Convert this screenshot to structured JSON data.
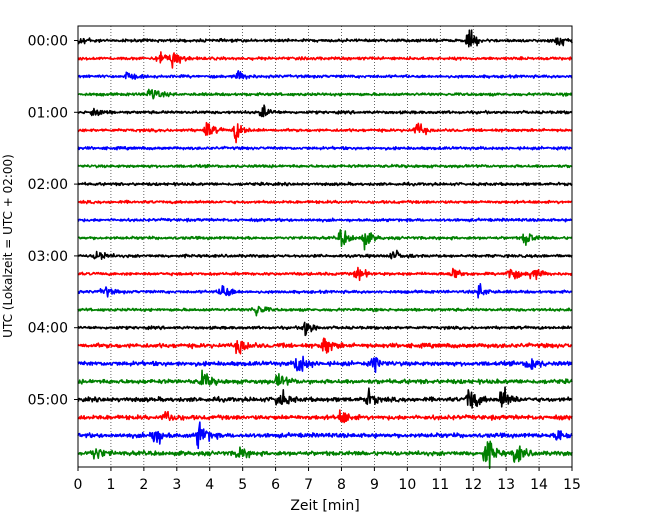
{
  "chart_data": {
    "type": "line",
    "chart_kind": "helicorder (seismogram drum plot)",
    "xlabel": "Zeit  [min]",
    "ylabel": "UTC (Lokalzeit = UTC + 02:00)",
    "xlim": [
      0,
      15
    ],
    "x_ticks": [
      "0",
      "1",
      "2",
      "3",
      "4",
      "5",
      "6",
      "7",
      "8",
      "9",
      "10",
      "11",
      "12",
      "13",
      "14",
      "15"
    ],
    "y_tick_labels": [
      "00:00",
      "01:00",
      "02:00",
      "03:00",
      "04:00",
      "05:00"
    ],
    "grid": "vertical dotted lines at each minute",
    "row_interval_min": 15,
    "trace_colors": [
      "#000000",
      "#ff0000",
      "#0000ff",
      "#008000"
    ],
    "rows": [
      {
        "start": "00:00",
        "color": "#000000",
        "events": [
          [
            0.1,
            0.6
          ],
          [
            11.9,
            1.0
          ],
          [
            14.6,
            0.8
          ]
        ]
      },
      {
        "start": "00:15",
        "color": "#ff0000",
        "events": [
          [
            2.5,
            0.8
          ],
          [
            2.9,
            1.0
          ]
        ]
      },
      {
        "start": "00:30",
        "color": "#0000ff",
        "events": [
          [
            1.5,
            0.4
          ],
          [
            4.9,
            0.5
          ]
        ]
      },
      {
        "start": "00:45",
        "color": "#008000",
        "events": [
          [
            2.2,
            1.0
          ]
        ]
      },
      {
        "start": "01:00",
        "color": "#000000",
        "events": [
          [
            0.5,
            0.6
          ],
          [
            5.6,
            0.7
          ]
        ]
      },
      {
        "start": "01:15",
        "color": "#ff0000",
        "events": [
          [
            3.9,
            1.0
          ],
          [
            4.8,
            1.1
          ],
          [
            10.3,
            0.8
          ]
        ]
      },
      {
        "start": "01:30",
        "color": "#0000ff",
        "events": []
      },
      {
        "start": "01:45",
        "color": "#008000",
        "events": []
      },
      {
        "start": "02:00",
        "color": "#000000",
        "events": []
      },
      {
        "start": "02:15",
        "color": "#ff0000",
        "events": []
      },
      {
        "start": "02:30",
        "color": "#0000ff",
        "events": []
      },
      {
        "start": "02:45",
        "color": "#008000",
        "events": [
          [
            8.0,
            1.0
          ],
          [
            8.7,
            1.0
          ],
          [
            13.6,
            0.8
          ]
        ]
      },
      {
        "start": "03:00",
        "color": "#000000",
        "events": [
          [
            0.6,
            0.8
          ],
          [
            9.6,
            0.6
          ]
        ]
      },
      {
        "start": "03:15",
        "color": "#ff0000",
        "events": [
          [
            8.5,
            0.7
          ],
          [
            11.4,
            0.7
          ],
          [
            13.1,
            1.0
          ],
          [
            13.8,
            0.8
          ]
        ]
      },
      {
        "start": "03:30",
        "color": "#0000ff",
        "events": [
          [
            0.8,
            0.6
          ],
          [
            4.4,
            1.0
          ],
          [
            12.2,
            0.8
          ]
        ]
      },
      {
        "start": "03:45",
        "color": "#008000",
        "events": [
          [
            5.4,
            0.8
          ]
        ]
      },
      {
        "start": "04:00",
        "color": "#000000",
        "events": [
          [
            6.9,
            1.0
          ]
        ]
      },
      {
        "start": "04:15",
        "color": "#ff0000",
        "events": [
          [
            4.9,
            1.1
          ],
          [
            7.5,
            1.1
          ]
        ]
      },
      {
        "start": "04:30",
        "color": "#0000ff",
        "events": [
          [
            6.7,
            1.4
          ],
          [
            9.0,
            0.7
          ],
          [
            13.7,
            1.0
          ]
        ]
      },
      {
        "start": "04:45",
        "color": "#008000",
        "events": [
          [
            3.8,
            1.0
          ],
          [
            6.1,
            0.8
          ]
        ]
      },
      {
        "start": "05:00",
        "color": "#000000",
        "events": [
          [
            6.1,
            1.2
          ],
          [
            8.8,
            0.9
          ],
          [
            11.9,
            1.6
          ],
          [
            12.9,
            1.4
          ]
        ]
      },
      {
        "start": "05:15",
        "color": "#ff0000",
        "events": [
          [
            2.7,
            0.7
          ],
          [
            8.0,
            0.8
          ]
        ]
      },
      {
        "start": "05:30",
        "color": "#0000ff",
        "events": [
          [
            2.3,
            1.4
          ],
          [
            3.7,
            1.6
          ],
          [
            14.6,
            0.8
          ]
        ]
      },
      {
        "start": "05:45",
        "color": "#008000",
        "events": [
          [
            0.5,
            0.8
          ],
          [
            4.9,
            0.7
          ],
          [
            12.4,
            1.8
          ],
          [
            13.3,
            1.2
          ]
        ]
      }
    ]
  }
}
